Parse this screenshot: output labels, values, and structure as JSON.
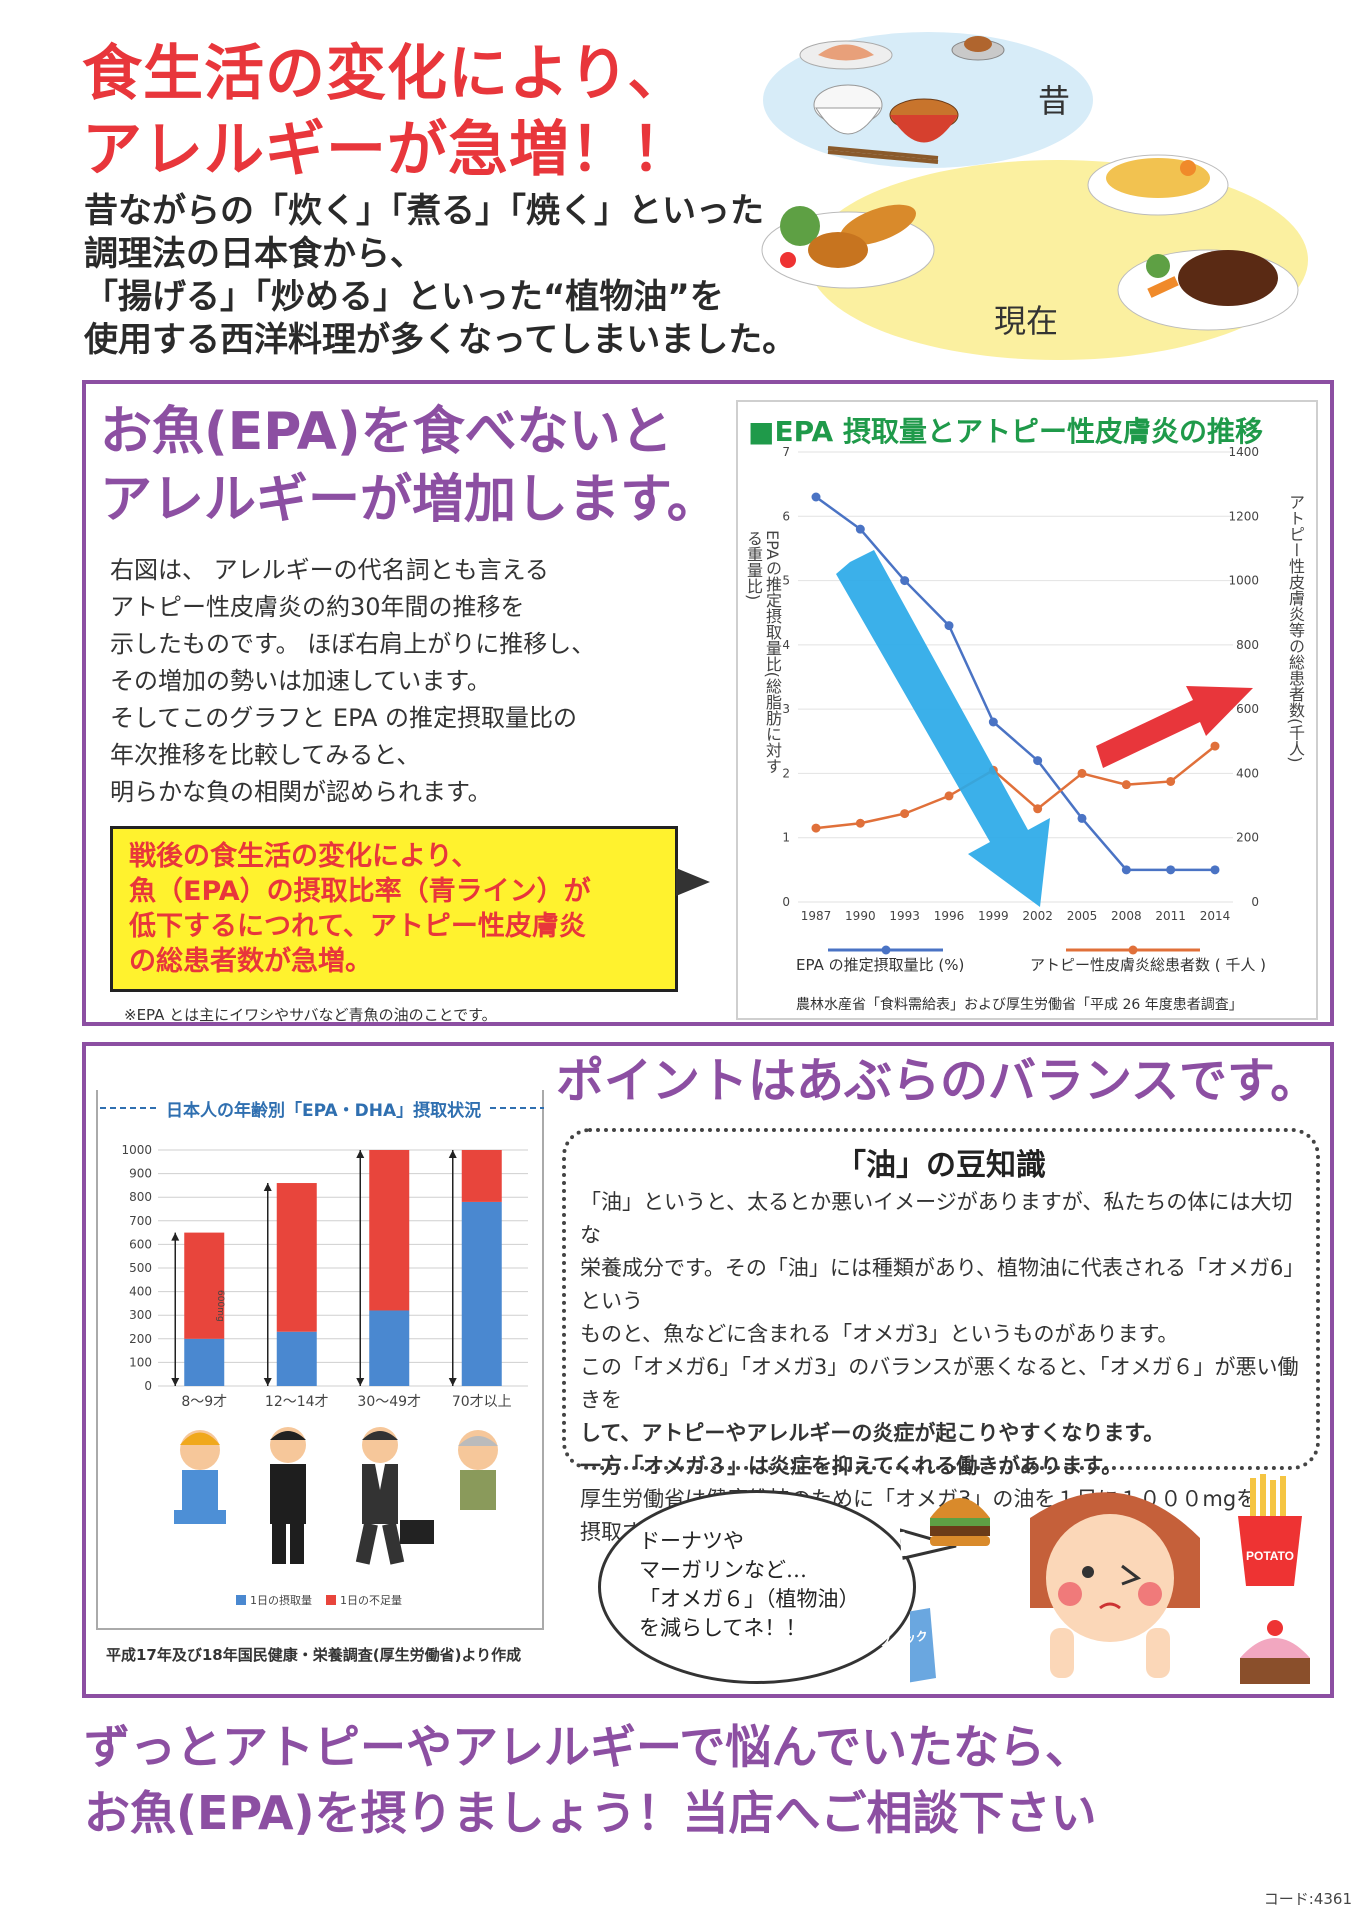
{
  "header": {
    "title_lines": [
      "食生活の変化により、",
      "アレルギーが急増！！"
    ],
    "intro_lines": [
      "昔ながらの「炊く」「煮る」「焼く」といった",
      "調理法の日本食から、",
      "「揚げる」「炒める」といった“植物油”を",
      "使用する西洋料理が多くなってしまいました。"
    ],
    "past_label": "昔",
    "present_label": "現在"
  },
  "section1": {
    "title_lines": [
      "お魚(EPA)を食べないと",
      "アレルギーが増加します。"
    ],
    "body_lines": [
      "右図は、 アレルギーの代名詞とも言える",
      "アトピー性皮膚炎の約30年間の推移を",
      "示したものです。 ほぼ右肩上がりに推移し、",
      "その増加の勢いは加速しています。",
      "そしてこのグラフと EPA の推定摂取量比の",
      "年次推移を比較してみると、",
      "明らかな負の相関が認められます。"
    ],
    "callout_lines": [
      "戦後の食生活の変化により、",
      "魚（EPA）の摂取比率（青ライン）が",
      "低下するにつれて、アトピー性皮膚炎",
      "の総患者数が急増。"
    ],
    "footnote": "※EPA とは主にイワシやサバなど青魚の油のことです。",
    "chart_title": "■EPA 摂取量とアトピー性皮膚炎の推移",
    "source": "農林水産省「食料需給表」および厚生労働省「平成 26 年度患者調査」"
  },
  "chart_data": [
    {
      "type": "line",
      "title": "■EPA 摂取量とアトピー性皮膚炎の推移",
      "x": [
        "1987",
        "1990",
        "1993",
        "1996",
        "1999",
        "2002",
        "2005",
        "2008",
        "2011",
        "2014"
      ],
      "ylabel": "EPAの推定摂取量比(総脂肪に対する重量比)",
      "y2label": "アトピー性皮膚炎等の総患者数(千人)",
      "ylim": [
        0,
        7
      ],
      "y2lim": [
        0,
        1400
      ],
      "y_ticks": [
        "0",
        "1",
        "2",
        "3",
        "4",
        "5",
        "6",
        "7"
      ],
      "y2_ticks": [
        "0",
        "200",
        "400",
        "600",
        "800",
        "1000",
        "1200",
        "1400"
      ],
      "series": [
        {
          "name": "EPA の推定摂取量比 (%)",
          "axis": "left",
          "color": "#4a73c4",
          "values": [
            6.3,
            5.8,
            5.0,
            4.3,
            2.8,
            2.2,
            1.3,
            0.5,
            0.5,
            0.5
          ]
        },
        {
          "name": "アトピー性皮膚炎総患者数 ( 千人 )",
          "axis": "right",
          "color": "#e0703a",
          "values": [
            230,
            245,
            275,
            330,
            410,
            290,
            400,
            365,
            375,
            485
          ]
        }
      ],
      "source": "農林水産省「食料需給表」および厚生労働省「平成 26 年度患者調査」"
    },
    {
      "type": "bar",
      "title": "日本人の年齢別「EPA・DHA」摂取状況",
      "categories": [
        "8～9才",
        "12～14才",
        "30～49才",
        "70才以上"
      ],
      "ylim": [
        0,
        1000
      ],
      "y_ticks": [
        "0",
        "100",
        "200",
        "300",
        "400",
        "500",
        "600",
        "700",
        "800",
        "900",
        "1000"
      ],
      "stacked": true,
      "series": [
        {
          "name": "1日の摂取量",
          "color": "#4a88d0",
          "values": [
            200,
            230,
            320,
            780
          ]
        },
        {
          "name": "1日の不足量",
          "color": "#e8453c",
          "values": [
            450,
            630,
            680,
            220
          ]
        }
      ],
      "annotation": "600mg",
      "source": "平成17年及び18年国民健康・栄養調査(厚生労働省)より作成"
    }
  ],
  "section2": {
    "title": "ポイントはあぶらのバランスです。",
    "bar_chart_title": "日本人の年齢別「EPA・DHA」摂取状況",
    "bar_source": "平成17年及び18年国民健康・栄養調査(厚生労働省)より作成",
    "trivia_title": "「油」の豆知識",
    "trivia_lines": [
      {
        "text": "「油」というと、太るとか悪いイメージがありますが、私たちの体には大切な",
        "bold": false
      },
      {
        "text": "栄養成分です。その「油」には種類があり、植物油に代表される「オメガ6」という",
        "bold": false
      },
      {
        "text": "ものと、魚などに含まれる「オメガ3」というものがあります。",
        "bold": false
      },
      {
        "text": "この「オメガ6」「オメガ3」のバランスが悪くなると、「オメガ６」が悪い働きを",
        "bold": false
      },
      {
        "text": "して、アトピーやアレルギーの炎症が起こりやすくなります。",
        "bold": true
      },
      {
        "text": "一方「オメガ３」は炎症を抑えてくれる働きがあります。",
        "bold": true
      },
      {
        "text": "厚生労働省は健康維持のために「オメガ3」の油を１日に１０００mgを",
        "bold": false
      },
      {
        "text": "摂取することをすすめています。",
        "bold": false
      }
    ],
    "bubble_lines": [
      "ドーナツや",
      "マーガリンなど…",
      "「オメガ６」（植物油）",
      "を減らしてネ！！"
    ],
    "potato_label": "POTATO",
    "snack_label": "スナック"
  },
  "footer": {
    "lines": [
      "ずっとアトピーやアレルギーで悩んでいたなら、",
      "お魚(EPA)を摂りましょう！当店へご相談下さい"
    ],
    "code": "コード:4361"
  }
}
